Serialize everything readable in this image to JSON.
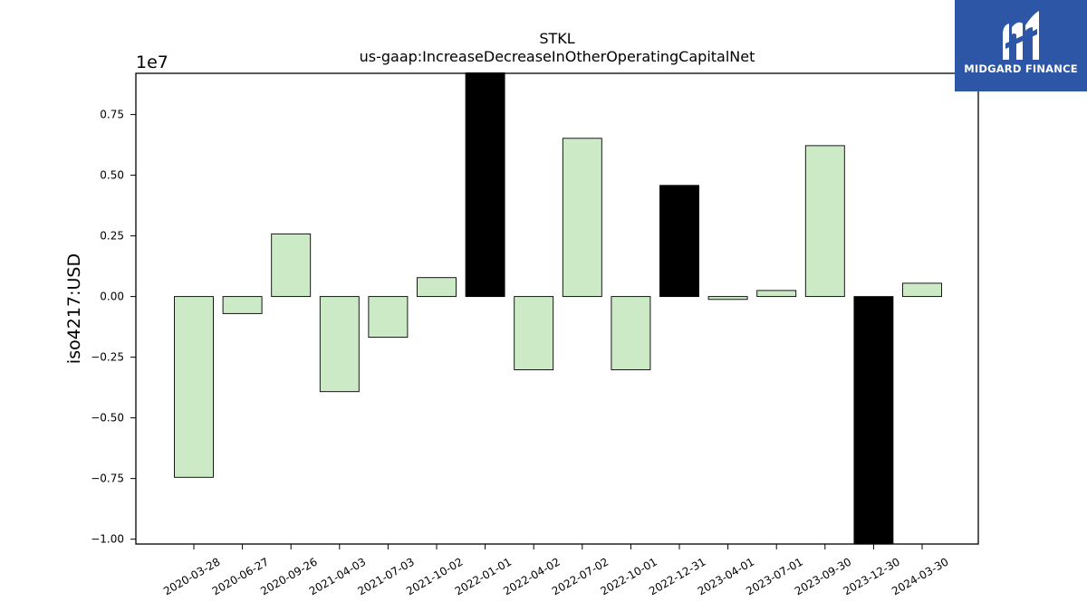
{
  "chart_data": {
    "type": "bar",
    "title": "STKL",
    "subtitle": "us-gaap:IncreaseDecreaseInOtherOperatingCapitalNet",
    "ylabel": "iso4217:USD",
    "xlabel": "",
    "scale_label": "1e7",
    "ylim": [
      -1.02,
      0.92
    ],
    "yticks": [
      -1.0,
      -0.75,
      -0.5,
      -0.25,
      0.0,
      0.25,
      0.5,
      0.75
    ],
    "ytick_labels": [
      "−1.00",
      "−0.75",
      "−0.50",
      "−0.25",
      "0.00",
      "0.25",
      "0.50",
      "0.75"
    ],
    "categories": [
      "2020-03-28",
      "2020-06-27",
      "2020-09-26",
      "2021-04-03",
      "2021-07-03",
      "2021-10-02",
      "2022-01-01",
      "2022-04-02",
      "2022-07-02",
      "2022-10-01",
      "2022-12-31",
      "2023-04-01",
      "2023-07-01",
      "2023-09-30",
      "2023-12-30",
      "2024-03-30"
    ],
    "values": [
      -0.745,
      -0.07,
      0.258,
      -0.392,
      -0.168,
      0.078,
      0.922,
      -0.302,
      0.652,
      -0.302,
      0.458,
      -0.012,
      0.025,
      0.622,
      -1.02,
      0.055
    ],
    "bar_colors": [
      "#cdeac6",
      "#cdeac6",
      "#cdeac6",
      "#cdeac6",
      "#cdeac6",
      "#cdeac6",
      "#000000",
      "#cdeac6",
      "#cdeac6",
      "#cdeac6",
      "#000000",
      "#cdeac6",
      "#cdeac6",
      "#cdeac6",
      "#000000",
      "#cdeac6"
    ],
    "grid": false,
    "legend": "none"
  },
  "logo": {
    "text": "MIDGARD FINANCE",
    "background": "#2e56a6"
  }
}
